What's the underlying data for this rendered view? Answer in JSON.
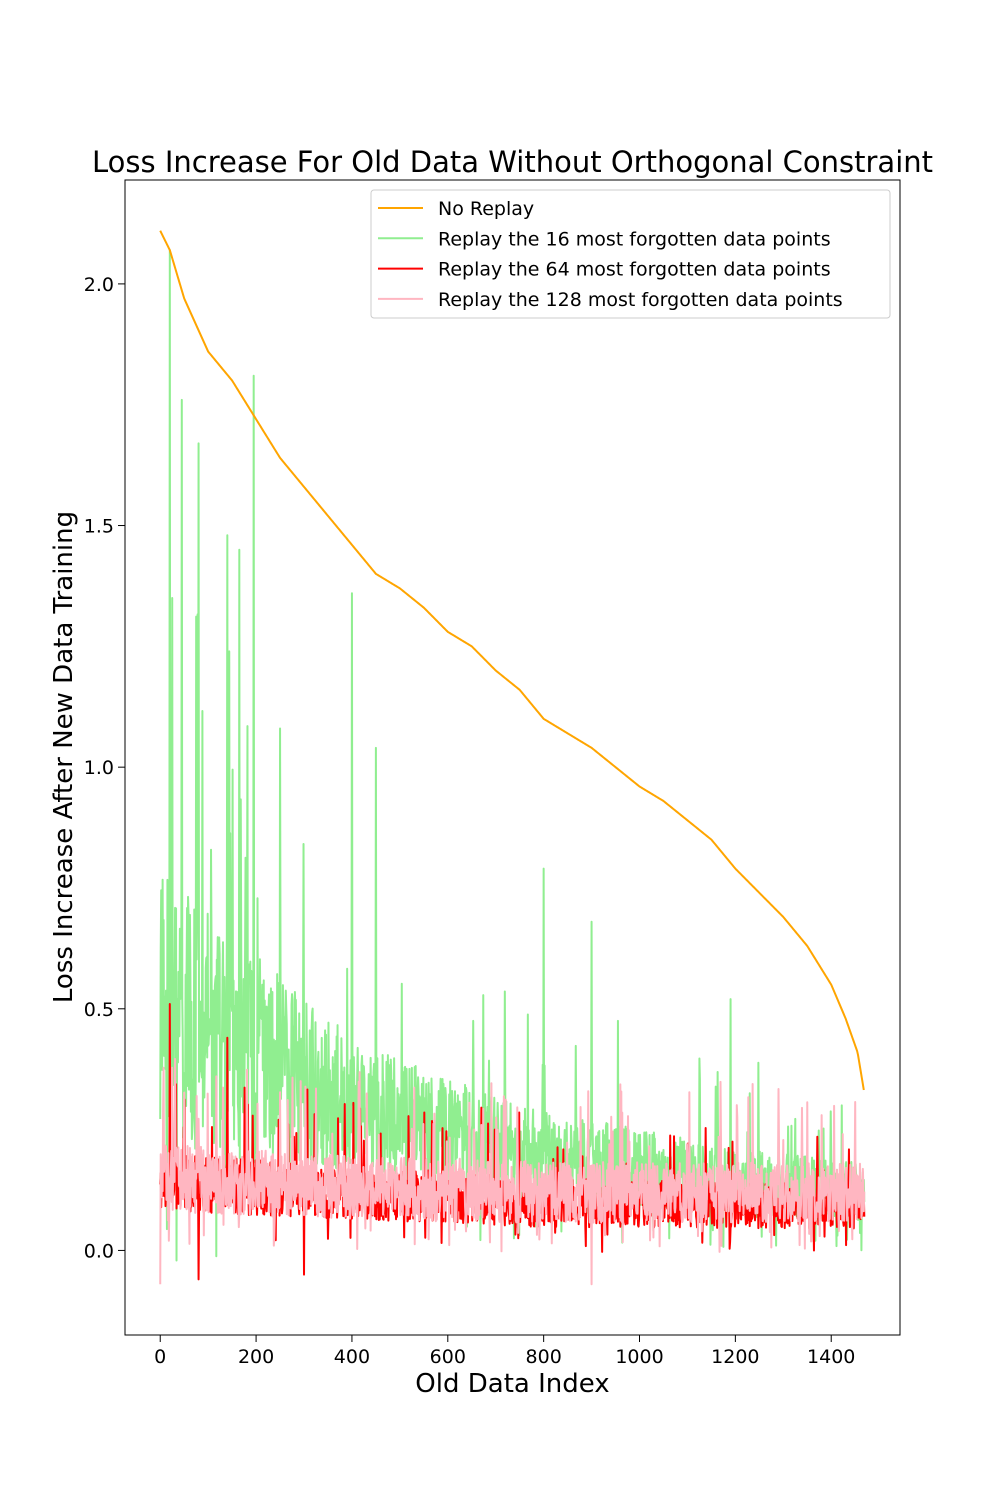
{
  "chart_data": {
    "type": "line",
    "title": "Loss Increase For Old Data Without Orthogonal Constraint",
    "xlabel": "Old Data Index",
    "ylabel": "Loss Increase After New Data Training",
    "xlim": [
      -73.5,
      1543.5
    ],
    "ylim": [
      -0.175,
      2.215
    ],
    "x_ticks": [
      0,
      200,
      400,
      600,
      800,
      1000,
      1200,
      1400
    ],
    "y_ticks": [
      0.0,
      0.5,
      1.0,
      1.5,
      2.0
    ],
    "x_tick_labels": [
      "0",
      "200",
      "400",
      "600",
      "800",
      "1000",
      "1200",
      "1400"
    ],
    "y_tick_labels": [
      "0.0",
      "0.5",
      "1.0",
      "1.5",
      "2.0"
    ],
    "grid": false,
    "legend_position": "upper right",
    "n_points": 1470,
    "series": [
      {
        "name": "No Replay",
        "color": "#ffa500",
        "kind": "sorted-decreasing",
        "keypoints": [
          [
            0,
            2.11
          ],
          [
            20,
            2.07
          ],
          [
            50,
            1.97
          ],
          [
            100,
            1.86
          ],
          [
            150,
            1.8
          ],
          [
            200,
            1.72
          ],
          [
            250,
            1.64
          ],
          [
            300,
            1.58
          ],
          [
            350,
            1.52
          ],
          [
            400,
            1.46
          ],
          [
            450,
            1.4
          ],
          [
            500,
            1.37
          ],
          [
            550,
            1.33
          ],
          [
            600,
            1.28
          ],
          [
            650,
            1.25
          ],
          [
            700,
            1.2
          ],
          [
            750,
            1.16
          ],
          [
            800,
            1.1
          ],
          [
            850,
            1.07
          ],
          [
            900,
            1.04
          ],
          [
            950,
            1.0
          ],
          [
            1000,
            0.96
          ],
          [
            1050,
            0.93
          ],
          [
            1100,
            0.89
          ],
          [
            1150,
            0.85
          ],
          [
            1200,
            0.79
          ],
          [
            1250,
            0.74
          ],
          [
            1300,
            0.69
          ],
          [
            1350,
            0.63
          ],
          [
            1400,
            0.55
          ],
          [
            1430,
            0.48
          ],
          [
            1455,
            0.41
          ],
          [
            1470,
            0.32
          ]
        ]
      },
      {
        "name": "Replay the 16 most forgotten data points",
        "color": "#90ee90",
        "kind": "noisy",
        "baseline": [
          [
            0,
            0.5
          ],
          [
            100,
            0.45
          ],
          [
            200,
            0.4
          ],
          [
            400,
            0.3
          ],
          [
            600,
            0.24
          ],
          [
            800,
            0.2
          ],
          [
            1000,
            0.17
          ],
          [
            1200,
            0.14
          ],
          [
            1470,
            0.12
          ]
        ],
        "spread": [
          [
            0,
            0.28
          ],
          [
            200,
            0.22
          ],
          [
            400,
            0.14
          ],
          [
            800,
            0.09
          ],
          [
            1470,
            0.06
          ]
        ],
        "spikes": [
          [
            20,
            2.07
          ],
          [
            25,
            1.35
          ],
          [
            45,
            1.76
          ],
          [
            80,
            1.67
          ],
          [
            140,
            1.48
          ],
          [
            165,
            1.45
          ],
          [
            195,
            1.81
          ],
          [
            250,
            1.08
          ],
          [
            400,
            1.36
          ],
          [
            450,
            1.04
          ],
          [
            800,
            0.79
          ],
          [
            900,
            0.68
          ],
          [
            1190,
            0.52
          ]
        ]
      },
      {
        "name": "Replay the 64 most forgotten data points",
        "color": "#ff0000",
        "kind": "noisy",
        "baseline": [
          [
            0,
            0.14
          ],
          [
            400,
            0.12
          ],
          [
            800,
            0.1
          ],
          [
            1470,
            0.09
          ]
        ],
        "spread": [
          [
            0,
            0.06
          ],
          [
            1470,
            0.045
          ]
        ],
        "spikes": [
          [
            20,
            0.51
          ],
          [
            140,
            0.44
          ],
          [
            80,
            -0.06
          ],
          [
            300,
            -0.05
          ]
        ]
      },
      {
        "name": "Replay the 128 most forgotten data points",
        "color": "#ffb6c1",
        "kind": "noisy",
        "baseline": [
          [
            0,
            0.15
          ],
          [
            400,
            0.13
          ],
          [
            800,
            0.12
          ],
          [
            1470,
            0.12
          ]
        ],
        "spread": [
          [
            0,
            0.07
          ],
          [
            1470,
            0.06
          ]
        ],
        "spikes": [
          [
            0,
            -0.07
          ],
          [
            900,
            -0.07
          ],
          [
            1380,
            0.28
          ]
        ]
      }
    ]
  }
}
